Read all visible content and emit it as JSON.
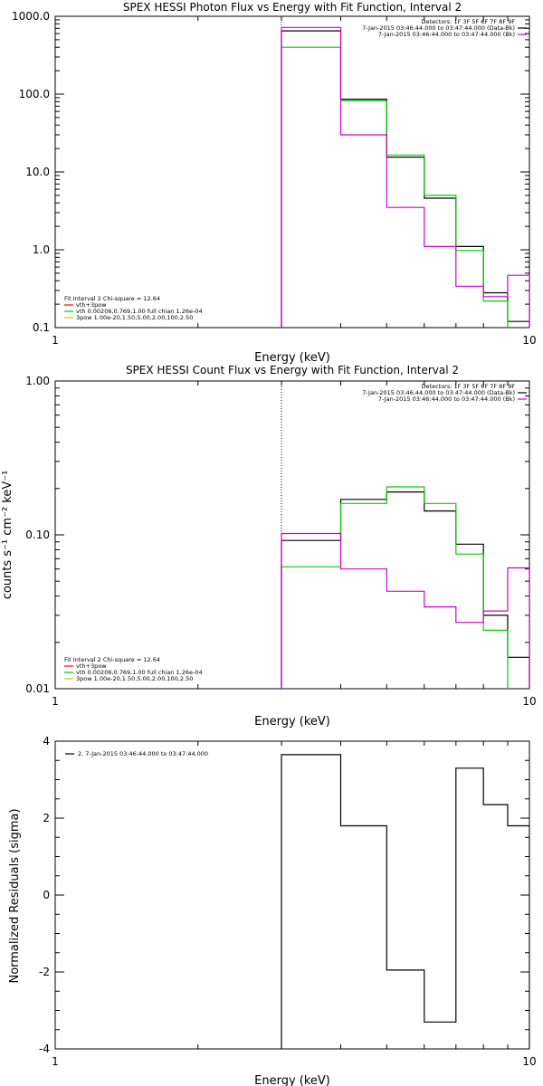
{
  "colors": {
    "black": "#000000",
    "green": "#00d000",
    "magenta": "#d000d0",
    "yellow": "#d0c000",
    "red": "#ff0000"
  },
  "chart_data": [
    {
      "type": "line",
      "step": true,
      "title": "SPEX HESSI Photon Flux vs Energy with Fit Function, Interval 2",
      "xlabel": "Energy (keV)",
      "ylabel": "",
      "xscale": "log",
      "yscale": "log",
      "xlim": [
        1,
        10
      ],
      "ylim": [
        0.1,
        1000
      ],
      "x_ticks": [
        "1",
        "10"
      ],
      "y_ticks": [
        "0.1",
        "1.0",
        "10.0",
        "100.0",
        "1000.0"
      ],
      "vline_x": 3,
      "legend_top": {
        "placement": "top-right",
        "header": "Detectors: 1F 3F 5F 6F 7F 8F 9F",
        "entries": [
          {
            "text": "7-Jan-2015 03:46:44.000 to 03:47:44.000 (Data-Bk)",
            "color": "#000000"
          },
          {
            "text": "7-Jan-2015 03:46:44.000 to 03:47:44.000 (Bk)",
            "color": "#d000d0"
          }
        ]
      },
      "legend_bottom": {
        "placement": "bottom-left",
        "header": "Fit Interval 2   Chi-square = 12.64",
        "entries": [
          {
            "text": "vth+3pow",
            "color": "#ff0000"
          },
          {
            "text": "vth 0.00206,0.769,1.00  full chian 1.26e-04",
            "color": "#00d000"
          },
          {
            "text": "3pow 1.00e-20,1.50,5.00,2.00,100,2.50",
            "color": "#d0c000"
          }
        ]
      },
      "series": [
        {
          "color": "#000000",
          "edges": [
            3.0,
            4.0,
            5.0,
            6.0,
            7.0,
            8.0,
            9.0,
            10.0
          ],
          "values": [
            650,
            86,
            15.5,
            4.6,
            1.1,
            0.28,
            0.12
          ]
        },
        {
          "color": "#00d000",
          "edges": [
            3.0,
            4.0,
            5.0,
            6.0,
            7.0,
            8.0,
            9.0
          ],
          "values": [
            400,
            82,
            16.5,
            5.0,
            0.98,
            0.22
          ]
        },
        {
          "color": "#d000d0",
          "edges": [
            3.0,
            4.0,
            5.0,
            6.0,
            7.0,
            8.0,
            9.0,
            10.0
          ],
          "values": [
            720,
            30,
            3.5,
            1.1,
            0.34,
            0.25,
            0.47
          ]
        }
      ]
    },
    {
      "type": "line",
      "step": true,
      "title": "SPEX HESSI Count Flux vs Energy with Fit Function, Interval 2",
      "xlabel": "Energy (keV)",
      "ylabel": "counts s⁻¹ cm⁻² keV⁻¹",
      "xscale": "log",
      "yscale": "log",
      "xlim": [
        1,
        10
      ],
      "ylim": [
        0.01,
        1.0
      ],
      "x_ticks": [
        "1",
        "10"
      ],
      "y_ticks": [
        "0.01",
        "0.10",
        "1.00"
      ],
      "vline_x": 3,
      "legend_top": {
        "placement": "top-right",
        "header": "Detectors: 1F 3F 5F 6F 7F 8F 9F",
        "entries": [
          {
            "text": "7-Jan-2015 03:46:44.000 to 03:47:44.000 (Data-Bk)",
            "color": "#000000"
          },
          {
            "text": "7-Jan-2015 03:46:44.000 to 03:47:44.000 (Bk)",
            "color": "#d000d0"
          }
        ]
      },
      "legend_bottom": {
        "placement": "bottom-left",
        "header": "Fit Interval 2   Chi-square = 12.64",
        "entries": [
          {
            "text": "vth+3pow",
            "color": "#ff0000"
          },
          {
            "text": "vth 0.00206,0.769,1.00  full chian 1.26e-04",
            "color": "#00d000"
          },
          {
            "text": "3pow 1.00e-20,1.50,5.00,2.00,100,2.50",
            "color": "#d0c000"
          }
        ]
      },
      "series": [
        {
          "color": "#000000",
          "edges": [
            3.0,
            4.0,
            5.0,
            6.0,
            7.0,
            8.0,
            9.0,
            10.0
          ],
          "values": [
            0.092,
            0.17,
            0.19,
            0.143,
            0.087,
            0.03,
            0.016
          ]
        },
        {
          "color": "#00d000",
          "edges": [
            3.0,
            4.0,
            5.0,
            6.0,
            7.0,
            8.0,
            9.0
          ],
          "values": [
            0.062,
            0.16,
            0.205,
            0.16,
            0.075,
            0.024
          ]
        },
        {
          "color": "#d000d0",
          "edges": [
            3.0,
            4.0,
            5.0,
            6.0,
            7.0,
            8.0,
            9.0,
            10.0
          ],
          "values": [
            0.102,
            0.06,
            0.043,
            0.034,
            0.027,
            0.032,
            0.061
          ]
        }
      ]
    },
    {
      "type": "line",
      "step": true,
      "title": "",
      "xlabel": "Energy (keV)",
      "ylabel": "Normalized Residuals (sigma)",
      "xscale": "log",
      "yscale": "linear",
      "xlim": [
        1,
        10
      ],
      "ylim": [
        -4,
        4
      ],
      "x_ticks": [
        "1",
        "10"
      ],
      "y_ticks": [
        "-4",
        "-2",
        "0",
        "2",
        "4"
      ],
      "legend_top": {
        "placement": "top-left",
        "header": "",
        "entries": [
          {
            "text": "2.  7-Jan-2015 03:46:44.000 to 03:47:44.000",
            "color": "#000000"
          }
        ]
      },
      "series": [
        {
          "color": "#000000",
          "edges": [
            3.0,
            4.0,
            5.0,
            6.0,
            7.0,
            8.0,
            9.0,
            10.0
          ],
          "values": [
            3.65,
            1.8,
            -1.95,
            -3.3,
            3.3,
            2.35,
            1.8
          ]
        }
      ]
    }
  ]
}
